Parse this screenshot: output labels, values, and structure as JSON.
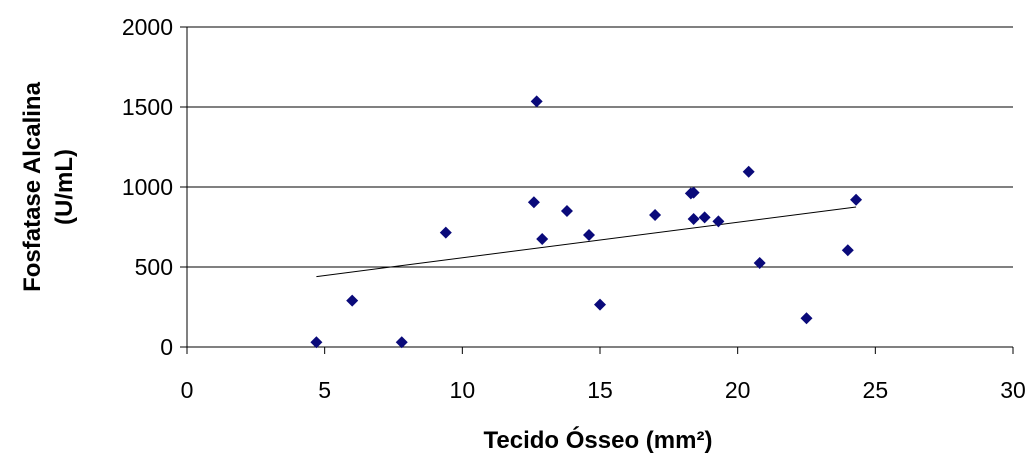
{
  "chart_data": {
    "type": "scatter",
    "title": "",
    "xlabel": "Tecido Ósseo (mm²)",
    "ylabel_lines": [
      "Fosfatase Alcalina",
      "(U/mL)"
    ],
    "xlim": [
      0,
      30
    ],
    "ylim": [
      0,
      2000
    ],
    "x_ticks": [
      "0",
      "5",
      "10",
      "15",
      "20",
      "25",
      "30"
    ],
    "y_ticks": [
      "0",
      "500",
      "1000",
      "1500",
      "2000"
    ],
    "grid": "horizontal",
    "legend": "none",
    "colors": {
      "marker": "#0A0A7A",
      "trendline": "#000000",
      "gridline": "#000000"
    },
    "series": [
      {
        "marker": "diamond",
        "points": [
          {
            "x": 4.7,
            "y": 30
          },
          {
            "x": 6.0,
            "y": 290
          },
          {
            "x": 7.8,
            "y": 30
          },
          {
            "x": 9.4,
            "y": 715
          },
          {
            "x": 12.6,
            "y": 905
          },
          {
            "x": 12.7,
            "y": 1535
          },
          {
            "x": 12.9,
            "y": 675
          },
          {
            "x": 13.8,
            "y": 850
          },
          {
            "x": 14.6,
            "y": 700
          },
          {
            "x": 15.0,
            "y": 265
          },
          {
            "x": 17.0,
            "y": 825
          },
          {
            "x": 18.3,
            "y": 960
          },
          {
            "x": 18.4,
            "y": 965
          },
          {
            "x": 18.4,
            "y": 800
          },
          {
            "x": 18.8,
            "y": 810
          },
          {
            "x": 19.3,
            "y": 785
          },
          {
            "x": 20.4,
            "y": 1095
          },
          {
            "x": 20.8,
            "y": 525
          },
          {
            "x": 22.5,
            "y": 180
          },
          {
            "x": 24.0,
            "y": 605
          },
          {
            "x": 24.3,
            "y": 920
          }
        ]
      }
    ],
    "trendline": {
      "type": "linear",
      "x": [
        4.7,
        24.3
      ],
      "y": [
        440,
        875
      ]
    }
  }
}
